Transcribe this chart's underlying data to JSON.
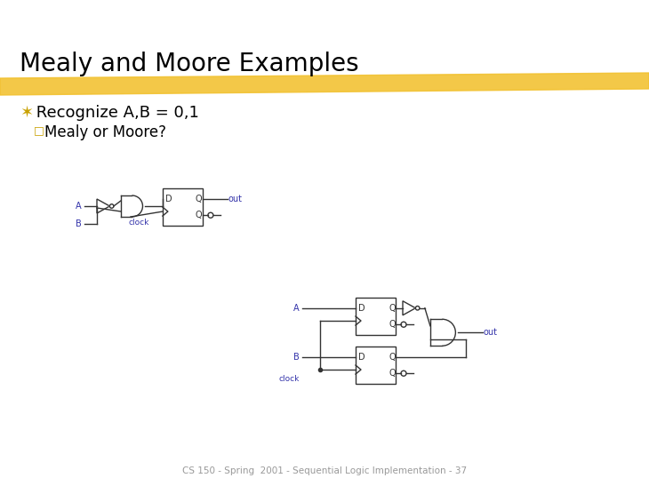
{
  "title": "Mealy and Moore Examples",
  "bullet1_sym": "✶",
  "bullet1_text": " Recognize A,B = 0,1",
  "bullet2_sym": "□",
  "bullet2_text": "Mealy or Moore?",
  "footer": "CS 150 - Spring  2001 - Sequential Logic Implementation - 37",
  "bg_color": "#FFFFFF",
  "highlight_color": "#F2C12E",
  "title_color": "#000000",
  "bullet_color": "#000000",
  "blue_color": "#3333AA",
  "circuit_color": "#333333",
  "highlight_alpha": 0.88,
  "title_fontsize": 20,
  "bullet1_fontsize": 13,
  "bullet2_fontsize": 12
}
